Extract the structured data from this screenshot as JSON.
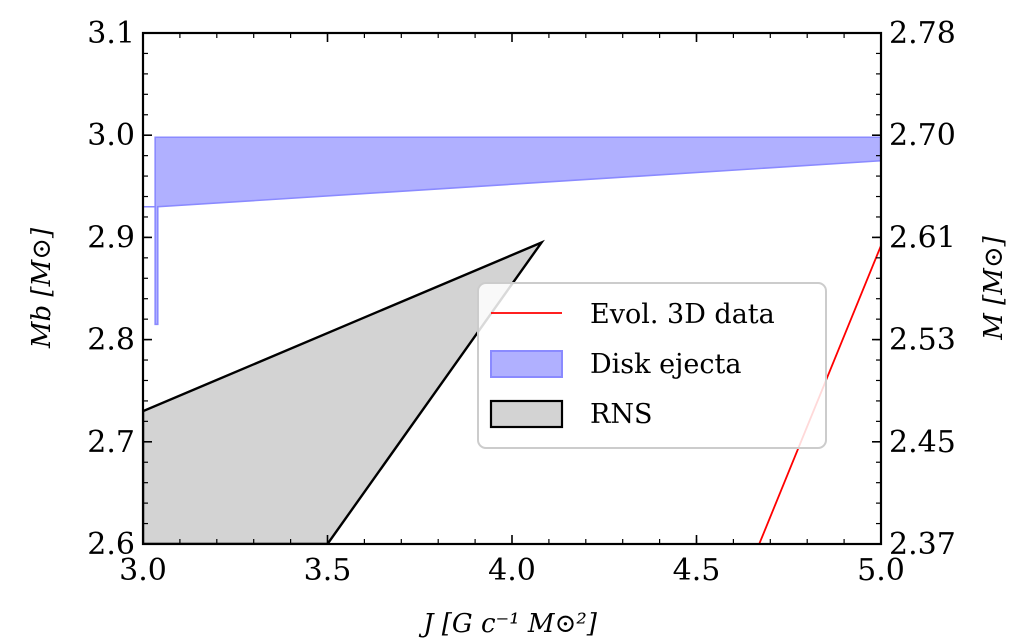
{
  "chart_data": {
    "type": "area",
    "x_axis": {
      "label": "J [G c⁻¹ M⊙²]",
      "range": [
        3.0,
        5.0
      ],
      "ticks": [
        3.0,
        3.5,
        4.0,
        4.5,
        5.0
      ],
      "tick_labels": [
        "3.0",
        "3.5",
        "4.0",
        "4.5",
        "5.0"
      ]
    },
    "y_axis_left": {
      "label": "Mb [M⊙]",
      "range": [
        2.6,
        3.1
      ],
      "ticks": [
        2.6,
        2.7,
        2.8,
        2.9,
        3.0,
        3.1
      ],
      "tick_labels": [
        "2.6",
        "2.7",
        "2.8",
        "2.9",
        "3.0",
        "3.1"
      ]
    },
    "y_axis_right": {
      "label": "M [M⊙]",
      "range": [
        2.37,
        2.78
      ],
      "tick_labels": [
        "2.37",
        "2.45",
        "2.53",
        "2.61",
        "2.70",
        "2.78"
      ],
      "tick_positions_left_units": [
        2.6,
        2.7,
        2.8,
        2.9,
        3.0,
        3.1
      ]
    },
    "series": [
      {
        "name": "Evol. 3D data",
        "kind": "line",
        "color": "#ff0000",
        "points": [
          [
            4.67,
            2.6
          ],
          [
            5.0,
            2.892
          ]
        ]
      },
      {
        "name": "Disk ejecta",
        "kind": "band",
        "color": "#b0b0ff",
        "edge_color": "#8a8aff",
        "polygon": [
          [
            3.0,
            2.93
          ],
          [
            3.033,
            2.93
          ],
          [
            3.033,
            2.998
          ],
          [
            5.0,
            2.998
          ],
          [
            5.0,
            2.975
          ],
          [
            3.04,
            2.93
          ],
          [
            3.04,
            2.93
          ],
          [
            3.04,
            2.815
          ],
          [
            3.033,
            2.815
          ],
          [
            3.033,
            2.93
          ],
          [
            3.0,
            2.93
          ]
        ]
      },
      {
        "name": "RNS",
        "kind": "polygon",
        "color": "#d3d3d3",
        "edge_color": "#000000",
        "polygon": [
          [
            3.0,
            2.73
          ],
          [
            4.08,
            2.895
          ],
          [
            3.5,
            2.6
          ],
          [
            3.0,
            2.6
          ]
        ]
      }
    ],
    "legend": {
      "placement": "center-right",
      "entries": [
        "Evol. 3D data",
        "Disk ejecta",
        "RNS"
      ]
    },
    "grid": false
  }
}
